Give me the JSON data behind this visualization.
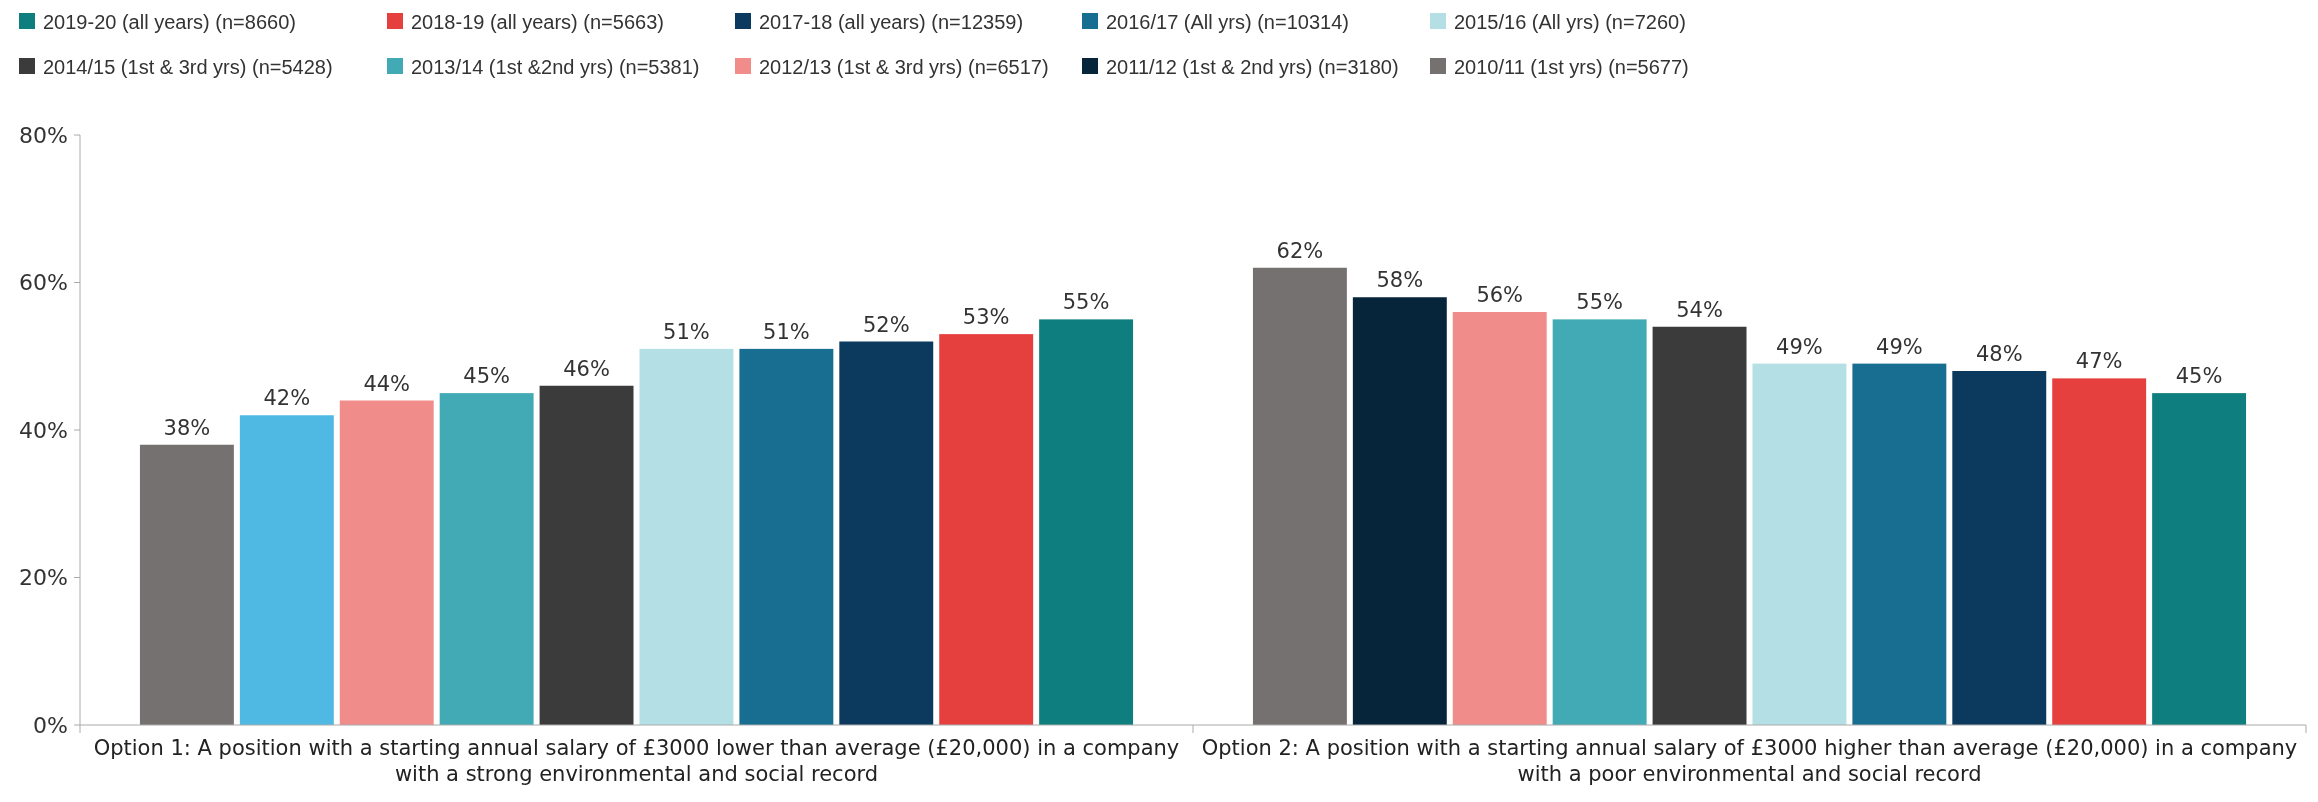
{
  "chart_data": {
    "type": "bar",
    "categories": [
      "Option 1: A position with a starting annual salary of £3000 lower than average (£20,000) in a company with a strong environmental and social record",
      "Option 2: A position with a starting annual salary of £3000 higher than average (£20,000) in a company with a poor environmental and social record"
    ],
    "series": [
      {
        "name": "2010/11 (1st yrs) (n=5677)",
        "color": "#767171",
        "values": [
          38,
          62
        ],
        "value_labels": [
          "38%",
          "62%"
        ]
      },
      {
        "name": "2011/12 (1st & 2nd yrs) (n=3180)",
        "color": "#06243a",
        "colors": [
          "#4fb9e3",
          "#06243a"
        ],
        "values": [
          42,
          58
        ],
        "value_labels": [
          "42%",
          "58%"
        ]
      },
      {
        "name": "2012/13 (1st & 3rd yrs) (n=6517)",
        "color": "#f08c89",
        "values": [
          44,
          56
        ],
        "value_labels": [
          "44%",
          "56%"
        ]
      },
      {
        "name": "2013/14 (1st &2nd yrs) (n=5381)",
        "color": "#41aab4",
        "values": [
          45,
          55
        ],
        "value_labels": [
          "45%",
          "55%"
        ]
      },
      {
        "name": "2014/15 (1st & 3rd yrs) (n=5428)",
        "color": "#3b3b3b",
        "values": [
          46,
          54
        ],
        "value_labels": [
          "46%",
          "54%"
        ]
      },
      {
        "name": "2015/16 (All yrs) (n=7260)",
        "color": "#b3dfe5",
        "values": [
          51,
          49
        ],
        "value_labels": [
          "51%",
          "49%"
        ]
      },
      {
        "name": "2016/17 (All yrs) (n=10314)",
        "color": "#176e91",
        "values": [
          51,
          49
        ],
        "value_labels": [
          "51%",
          "49%"
        ]
      },
      {
        "name": "2017-18 (all years) (n=12359)",
        "color": "#0b3a5e",
        "values": [
          52,
          48
        ],
        "value_labels": [
          "52%",
          "48%"
        ]
      },
      {
        "name": "2018-19 (all years) (n=5663)",
        "color": "#e5403e",
        "values": [
          53,
          47
        ],
        "value_labels": [
          "53%",
          "47%"
        ]
      },
      {
        "name": "2019-20 (all years) (n=8660)",
        "color": "#0e7f7e",
        "values": [
          55,
          45
        ],
        "value_labels": [
          "55%",
          "45%"
        ]
      }
    ],
    "ylim": [
      0,
      80
    ],
    "yticks": [
      {
        "value": 0,
        "label": "0%"
      },
      {
        "value": 20,
        "label": "20%"
      },
      {
        "value": 40,
        "label": "40%"
      },
      {
        "value": 60,
        "label": "60%"
      },
      {
        "value": 80,
        "label": "80%"
      }
    ],
    "grid": false,
    "legend": "top"
  }
}
